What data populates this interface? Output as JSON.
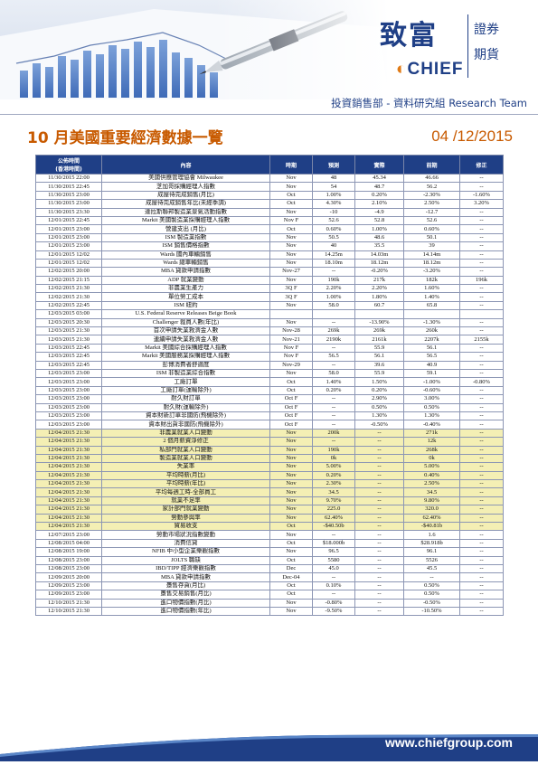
{
  "header": {
    "logo_cn": "致富",
    "logo_en": "CHIEF",
    "logo_sub_1": "證券",
    "logo_sub_2": "期貨",
    "dept": "投資銷售部 - 資料研究組 Research Team"
  },
  "title": "10 月美國重要經濟數據一覽",
  "date": "04 /12/2015",
  "table": {
    "headers": {
      "time_1": "公佈時間",
      "time_2": "(香港時間)",
      "content": "內容",
      "period": "時期",
      "forecast": "預測",
      "actual": "實際",
      "previous": "前期",
      "revised": "修正"
    },
    "rows": [
      {
        "time": "11/30/2015 22:00",
        "item": "美國供應管理協會 Milwaukee",
        "period": "Nov",
        "forecast": "48",
        "actual": "45.34",
        "prev": "46.66",
        "rev": "--",
        "hl": false
      },
      {
        "time": "11/30/2015 22:45",
        "item": "芝加哥採購經理人指數",
        "period": "Nov",
        "forecast": "54",
        "actual": "48.7",
        "prev": "56.2",
        "rev": "--",
        "hl": false
      },
      {
        "time": "11/30/2015 23:00",
        "item": "成屋待完成銷售(月比)",
        "period": "Oct",
        "forecast": "1.00%",
        "actual": "0.20%",
        "prev": "-2.30%",
        "rev": "-1.60%",
        "hl": false
      },
      {
        "time": "11/30/2015 23:00",
        "item": "成屋待完成銷售年比(未經季調)",
        "period": "Oct",
        "forecast": "4.30%",
        "actual": "2.10%",
        "prev": "2.50%",
        "rev": "3.20%",
        "hl": false
      },
      {
        "time": "11/30/2015 23:30",
        "item": "達拉斯聯邦製造業景氣活動指數",
        "period": "Nov",
        "forecast": "-10",
        "actual": "-4.9",
        "prev": "-12.7",
        "rev": "--",
        "hl": false
      },
      {
        "time": "12/01/2015 22:45",
        "item": "Markit 美國製造業採購經理人指數",
        "period": "Nov F",
        "forecast": "52.6",
        "actual": "52.8",
        "prev": "52.6",
        "rev": "--",
        "hl": false
      },
      {
        "time": "12/01/2015 23:00",
        "item": "營建支出 (月比)",
        "period": "Oct",
        "forecast": "0.60%",
        "actual": "1.00%",
        "prev": "0.60%",
        "rev": "--",
        "hl": false
      },
      {
        "time": "12/01/2015 23:00",
        "item": "ISM 製造業指數",
        "period": "Nov",
        "forecast": "50.5",
        "actual": "48.6",
        "prev": "50.1",
        "rev": "--",
        "hl": false
      },
      {
        "time": "12/01/2015 23:00",
        "item": "ISM 銷售價格指數",
        "period": "Nov",
        "forecast": "40",
        "actual": "35.5",
        "prev": "39",
        "rev": "--",
        "hl": false
      },
      {
        "time": "12/01/2015 12/02",
        "item": "Wards 國內車輛銷售",
        "period": "Nov",
        "forecast": "14.25m",
        "actual": "14.03m",
        "prev": "14.14m",
        "rev": "--",
        "hl": false
      },
      {
        "time": "12/01/2015 12/02",
        "item": "Wards 總車輛銷售",
        "period": "Nov",
        "forecast": "18.10m",
        "actual": "18.12m",
        "prev": "18.12m",
        "rev": "--",
        "hl": false
      },
      {
        "time": "12/02/2015 20:00",
        "item": "MBA 貸款申請指數",
        "period": "Nov-27",
        "forecast": "--",
        "actual": "-0.20%",
        "prev": "-3.20%",
        "rev": "--",
        "hl": false
      },
      {
        "time": "12/02/2015 21:15",
        "item": "ADP 就業變動",
        "period": "Nov",
        "forecast": "190k",
        "actual": "217k",
        "prev": "182k",
        "rev": "196k",
        "hl": false
      },
      {
        "time": "12/02/2015 21:30",
        "item": "非農業生產力",
        "period": "3Q F",
        "forecast": "2.20%",
        "actual": "2.20%",
        "prev": "1.60%",
        "rev": "--",
        "hl": false
      },
      {
        "time": "12/02/2015 21:30",
        "item": "單位勞工成本",
        "period": "3Q F",
        "forecast": "1.00%",
        "actual": "1.80%",
        "prev": "1.40%",
        "rev": "--",
        "hl": false
      },
      {
        "time": "12/02/2015 22:45",
        "item": "ISM 紐約",
        "period": "Nov",
        "forecast": "58.0",
        "actual": "60.7",
        "prev": "65.8",
        "rev": "--",
        "hl": false
      },
      {
        "time": "12/03/2015 03:00",
        "item": "U.S. Federal Reserve Releases Beige Book",
        "period": "",
        "forecast": "",
        "actual": "",
        "prev": "",
        "rev": "",
        "hl": false
      },
      {
        "time": "12/03/2015 20:30",
        "item": "Challenger 裁員人數(年比)",
        "period": "Nov",
        "forecast": "--",
        "actual": "-13.90%",
        "prev": "-1.30%",
        "rev": "--",
        "hl": false
      },
      {
        "time": "12/03/2015 21:30",
        "item": "首次申請失業救濟金人數",
        "period": "Nov-28",
        "forecast": "269k",
        "actual": "269k",
        "prev": "260k",
        "rev": "--",
        "hl": false
      },
      {
        "time": "12/03/2015 21:30",
        "item": "連續申請失業救濟金人數",
        "period": "Nov-21",
        "forecast": "2190k",
        "actual": "2161k",
        "prev": "2207k",
        "rev": "2155k",
        "hl": false
      },
      {
        "time": "12/03/2015 22:45",
        "item": "Markit 美國綜合採購經理人指數",
        "period": "Nov F",
        "forecast": "--",
        "actual": "55.9",
        "prev": "56.1",
        "rev": "--",
        "hl": false
      },
      {
        "time": "12/03/2015 22:45",
        "item": "Markit 美國服務業採購經理人指數",
        "period": "Nov F",
        "forecast": "56.5",
        "actual": "56.1",
        "prev": "56.5",
        "rev": "--",
        "hl": false
      },
      {
        "time": "12/03/2015 22:45",
        "item": "彭博消費者舒適度",
        "period": "Nov-29",
        "forecast": "--",
        "actual": "39.6",
        "prev": "40.9",
        "rev": "--",
        "hl": false
      },
      {
        "time": "12/03/2015 23:00",
        "item": "ISM 非製造業綜合指數",
        "period": "Nov",
        "forecast": "58.0",
        "actual": "55.9",
        "prev": "59.1",
        "rev": "--",
        "hl": false
      },
      {
        "time": "12/03/2015 23:00",
        "item": "工廠訂單",
        "period": "Oct",
        "forecast": "1.40%",
        "actual": "1.50%",
        "prev": "-1.00%",
        "rev": "-0.80%",
        "hl": false
      },
      {
        "time": "12/03/2015 23:00",
        "item": "工廠訂單(運輸除外)",
        "period": "Oct",
        "forecast": "0.20%",
        "actual": "0.20%",
        "prev": "-0.60%",
        "rev": "--",
        "hl": false
      },
      {
        "time": "12/03/2015 23:00",
        "item": "耐久財訂單",
        "period": "Oct F",
        "forecast": "--",
        "actual": "2.90%",
        "prev": "3.00%",
        "rev": "--",
        "hl": false
      },
      {
        "time": "12/03/2015 23:00",
        "item": "耐久財(運輸除外)",
        "period": "Oct F",
        "forecast": "--",
        "actual": "0.50%",
        "prev": "0.50%",
        "rev": "--",
        "hl": false
      },
      {
        "time": "12/03/2015 23:00",
        "item": "資本財新訂單非國防(飛機除外)",
        "period": "Oct F",
        "forecast": "--",
        "actual": "1.30%",
        "prev": "1.30%",
        "rev": "--",
        "hl": false
      },
      {
        "time": "12/03/2015 23:00",
        "item": "資本財出貨非國防(飛機除外)",
        "period": "Oct F",
        "forecast": "--",
        "actual": "-0.50%",
        "prev": "-0.40%",
        "rev": "--",
        "hl": false
      },
      {
        "time": "12/04/2015 21:30",
        "item": "非農業就業人口變動",
        "period": "Nov",
        "forecast": "200k",
        "actual": "--",
        "prev": "271k",
        "rev": "--",
        "hl": true
      },
      {
        "time": "12/04/2015 21:30",
        "item": "2 個月薪資淨修正",
        "period": "Nov",
        "forecast": "--",
        "actual": "--",
        "prev": "12k",
        "rev": "--",
        "hl": true
      },
      {
        "time": "12/04/2015 21:30",
        "item": "私部門就業人口變動",
        "period": "Nov",
        "forecast": "190k",
        "actual": "--",
        "prev": "268k",
        "rev": "--",
        "hl": true
      },
      {
        "time": "12/04/2015 21:30",
        "item": "製造業就業人口變動",
        "period": "Nov",
        "forecast": "0k",
        "actual": "--",
        "prev": "0k",
        "rev": "--",
        "hl": true
      },
      {
        "time": "12/04/2015 21:30",
        "item": "失業率",
        "period": "Nov",
        "forecast": "5.00%",
        "actual": "--",
        "prev": "5.00%",
        "rev": "--",
        "hl": true
      },
      {
        "time": "12/04/2015 21:30",
        "item": "平均時薪(月比)",
        "period": "Nov",
        "forecast": "0.20%",
        "actual": "--",
        "prev": "0.40%",
        "rev": "--",
        "hl": true
      },
      {
        "time": "12/04/2015 21:30",
        "item": "平均時薪(年比)",
        "period": "Nov",
        "forecast": "2.30%",
        "actual": "--",
        "prev": "2.50%",
        "rev": "--",
        "hl": true
      },
      {
        "time": "12/04/2015 21:30",
        "item": "平均每週工時-全部員工",
        "period": "Nov",
        "forecast": "34.5",
        "actual": "--",
        "prev": "34.5",
        "rev": "--",
        "hl": true
      },
      {
        "time": "12/04/2015 21:30",
        "item": "就業不足率",
        "period": "Nov",
        "forecast": "9.70%",
        "actual": "--",
        "prev": "9.80%",
        "rev": "--",
        "hl": true
      },
      {
        "time": "12/04/2015 21:30",
        "item": "家計部門就業變動",
        "period": "Nov",
        "forecast": "225.0",
        "actual": "--",
        "prev": "320.0",
        "rev": "--",
        "hl": true
      },
      {
        "time": "12/04/2015 21:30",
        "item": "勞動參與率",
        "period": "Nov",
        "forecast": "62.40%",
        "actual": "--",
        "prev": "62.40%",
        "rev": "--",
        "hl": true
      },
      {
        "time": "12/04/2015 21:30",
        "item": "貿易收支",
        "period": "Oct",
        "forecast": "-$40.50b",
        "actual": "--",
        "prev": "-$40.81b",
        "rev": "--",
        "hl": true
      },
      {
        "time": "12/07/2015 23:00",
        "item": "勞動市場狀況指數變動",
        "period": "Nov",
        "forecast": "--",
        "actual": "--",
        "prev": "1.6",
        "rev": "--",
        "hl": false
      },
      {
        "time": "12/08/2015 04:00",
        "item": "消費信貸",
        "period": "Oct",
        "forecast": "$18.000b",
        "actual": "--",
        "prev": "$28.918b",
        "rev": "--",
        "hl": false
      },
      {
        "time": "12/08/2015 19:00",
        "item": "NFIB 中小型企業樂觀指數",
        "period": "Nov",
        "forecast": "96.5",
        "actual": "--",
        "prev": "96.1",
        "rev": "--",
        "hl": false
      },
      {
        "time": "12/08/2015 23:00",
        "item": "JOLTS 職缺",
        "period": "Oct",
        "forecast": "5580",
        "actual": "--",
        "prev": "5526",
        "rev": "--",
        "hl": false
      },
      {
        "time": "12/08/2015 23:00",
        "item": "IBD/TIPP 經濟樂觀指數",
        "period": "Dec",
        "forecast": "45.0",
        "actual": "--",
        "prev": "45.5",
        "rev": "--",
        "hl": false
      },
      {
        "time": "12/09/2015 20:00",
        "item": "MBA 貸款申請指數",
        "period": "Dec-04",
        "forecast": "--",
        "actual": "--",
        "prev": "--",
        "rev": "--",
        "hl": false
      },
      {
        "time": "12/09/2015 23:00",
        "item": "躉售存貨(月比)",
        "period": "Oct",
        "forecast": "0.10%",
        "actual": "--",
        "prev": "0.50%",
        "rev": "--",
        "hl": false
      },
      {
        "time": "12/09/2015 23:00",
        "item": "躉售交易銷售(月比)",
        "period": "Oct",
        "forecast": "--",
        "actual": "--",
        "prev": "0.50%",
        "rev": "--",
        "hl": false
      },
      {
        "time": "12/10/2015 21:30",
        "item": "進口物價指數(月比)",
        "period": "Nov",
        "forecast": "-0.80%",
        "actual": "--",
        "prev": "-0.50%",
        "rev": "--",
        "hl": false
      },
      {
        "time": "12/10/2015 21:30",
        "item": "進口物價指數(年比)",
        "period": "Nov",
        "forecast": "-9.50%",
        "actual": "--",
        "prev": "-10.50%",
        "rev": "--",
        "hl": false
      }
    ]
  },
  "footer": {
    "url": "www.chiefgroup.com"
  },
  "colors": {
    "brand_blue": "#1f3f86",
    "accent_orange": "#c85a00",
    "highlight": "#f4efb4"
  }
}
